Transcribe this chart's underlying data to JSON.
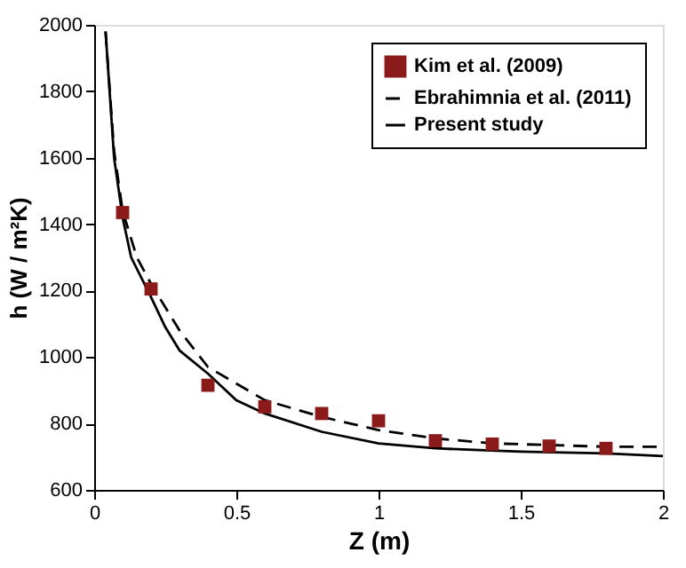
{
  "chart_data": {
    "type": "line",
    "xlabel": "Z (m)",
    "ylabel": "h (W / m²K)",
    "xlim": [
      0,
      2
    ],
    "ylim": [
      600,
      2000
    ],
    "xticks": [
      0,
      0.5,
      1,
      1.5,
      2
    ],
    "yticks": [
      600,
      800,
      1000,
      1200,
      1400,
      1600,
      1800,
      2000
    ],
    "grid": false,
    "legend": "top right",
    "series": [
      {
        "name": "Kim et al. (2009)",
        "type": "scatter",
        "marker": "square",
        "color": "#8b1a1a",
        "x": [
          0.1,
          0.2,
          0.4,
          0.6,
          0.8,
          1.0,
          1.2,
          1.4,
          1.6,
          1.8
        ],
        "values": [
          1435,
          1205,
          915,
          850,
          830,
          808,
          748,
          738,
          732,
          725
        ]
      },
      {
        "name": "Ebrahimnia et al. (2011)",
        "line_style": "dashed",
        "color": "#000000",
        "x": [
          0.04,
          0.07,
          0.1,
          0.15,
          0.2,
          0.3,
          0.4,
          0.6,
          0.8,
          1.0,
          1.2,
          1.4,
          1.6,
          1.8,
          2.0
        ],
        "values": [
          1980,
          1620,
          1440,
          1300,
          1220,
          1080,
          970,
          870,
          820,
          780,
          755,
          740,
          735,
          730,
          730
        ]
      },
      {
        "name": "Present study",
        "line_style": "solid",
        "color": "#000000",
        "x": [
          0.04,
          0.07,
          0.1,
          0.13,
          0.2,
          0.25,
          0.3,
          0.4,
          0.5,
          0.6,
          0.8,
          1.0,
          1.2,
          1.5,
          1.8,
          2.0
        ],
        "values": [
          1980,
          1600,
          1420,
          1300,
          1180,
          1090,
          1020,
          950,
          870,
          830,
          775,
          740,
          725,
          715,
          710,
          702
        ]
      }
    ]
  }
}
